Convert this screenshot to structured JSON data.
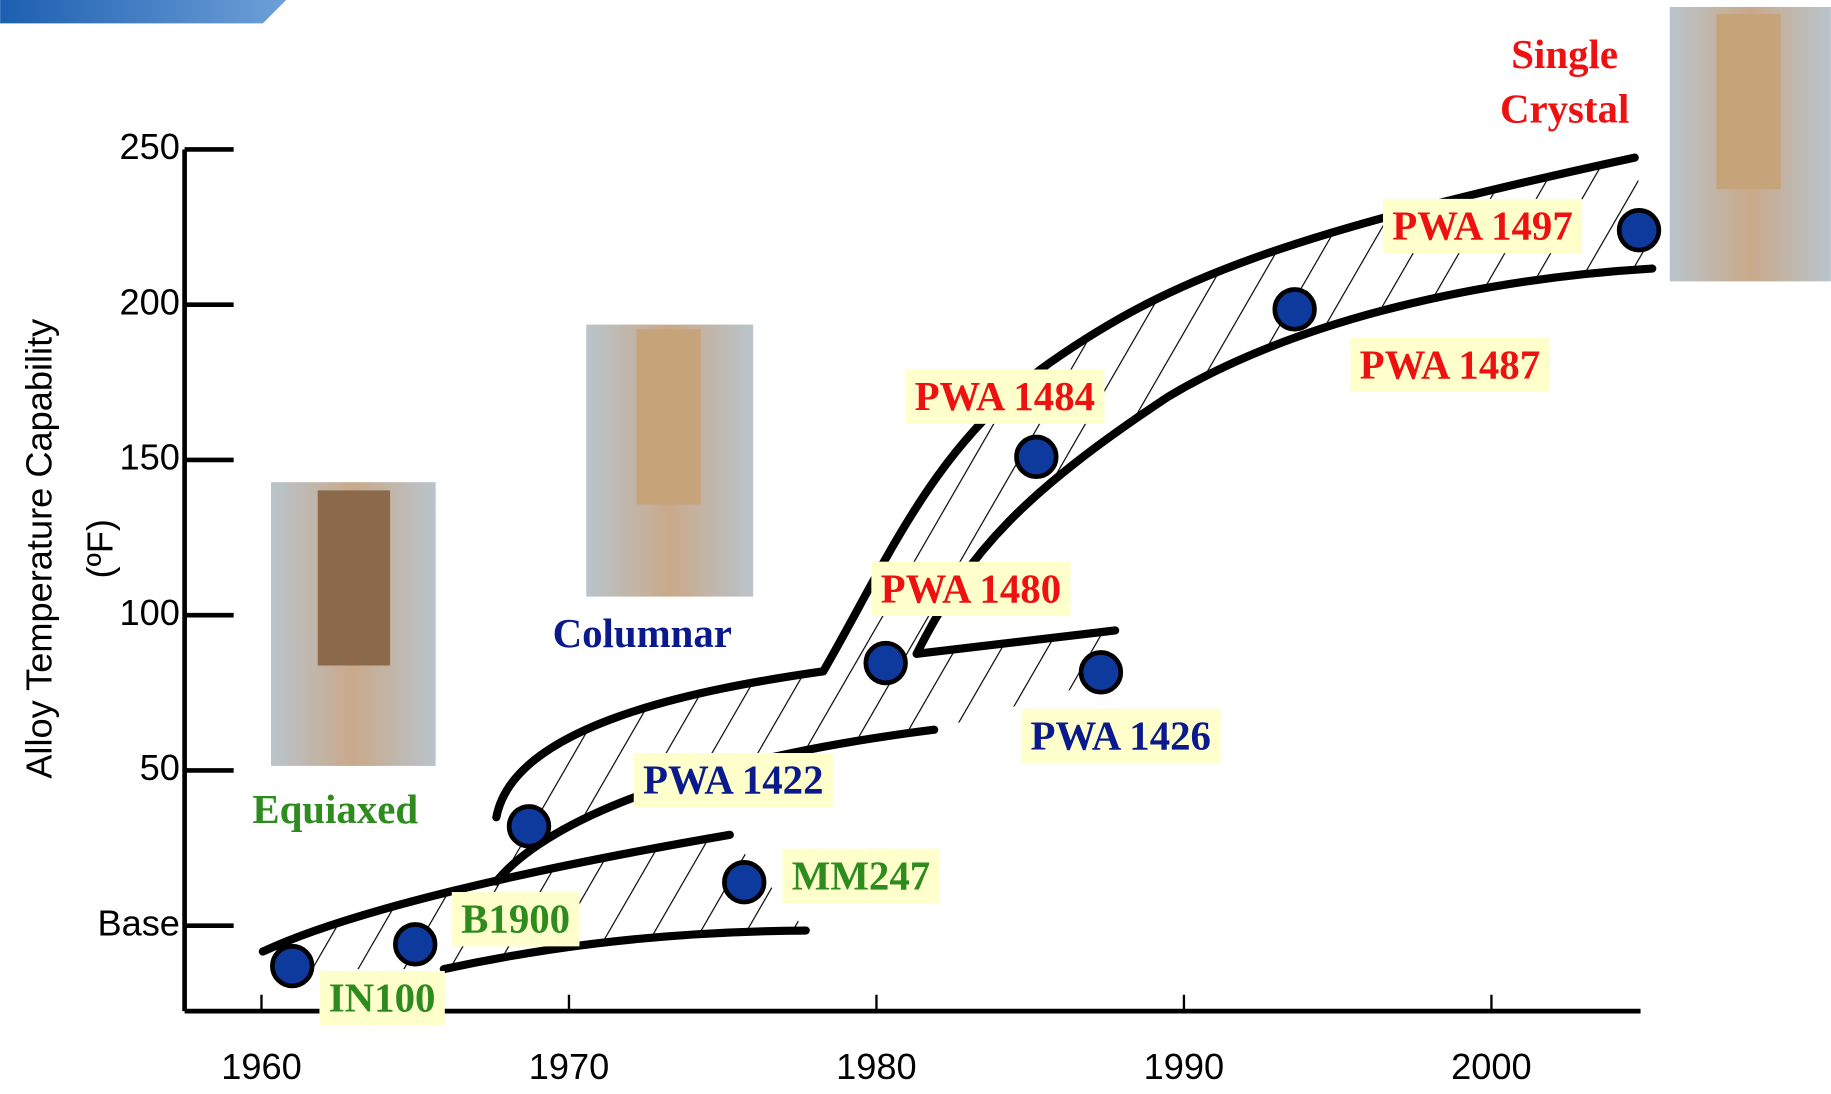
{
  "chart_data": {
    "type": "scatter",
    "y_label": [
      "Alloy Temperature Capability",
      "(ºF)"
    ],
    "xlim": [
      1957.5,
      2004.85
    ],
    "xticks": [
      1960,
      1970,
      1980,
      1990,
      2000
    ],
    "ylim": [
      -27.5,
      250
    ],
    "yticks": [
      {
        "value": 0,
        "label": "Base"
      },
      50,
      100,
      150,
      200,
      250
    ],
    "marker_color": "#0d3a9c",
    "points": [
      {
        "label": "IN100",
        "x": 1961,
        "y": -13,
        "color": "#2e8b1e"
      },
      {
        "label": "B1900",
        "x": 1965,
        "y": -6,
        "color": "#2e8b1e"
      },
      {
        "label": "PWA  1422",
        "x": 1968.7,
        "y": 32,
        "color": "#0a1a8c"
      },
      {
        "label": "MM247",
        "x": 1975.7,
        "y": 14,
        "color": "#2e8b1e"
      },
      {
        "label": "PWA 1480",
        "x": 1980.3,
        "y": 84.6,
        "color": "#ee1111"
      },
      {
        "label": "PWA 1426",
        "x": 1987.3,
        "y": 81.6,
        "color": "#0a1a8c"
      },
      {
        "label": "PWA 1484",
        "x": 1985.2,
        "y": 151,
        "color": "#ee1111"
      },
      {
        "label": "PWA 1487",
        "x": 1993.6,
        "y": 198.5,
        "color": "#ee1111"
      },
      {
        "label": "PWA 1497",
        "x": 2004.8,
        "y": 224,
        "color": "#ee1111"
      }
    ],
    "groups": [
      {
        "lines": [
          "Equiaxed"
        ],
        "color": "#2e8b1e"
      },
      {
        "lines": [
          "Columnar"
        ],
        "color": "#0a1a8c"
      },
      {
        "lines": [
          "Single",
          "Crystal"
        ],
        "color": "#ee1111"
      }
    ]
  }
}
